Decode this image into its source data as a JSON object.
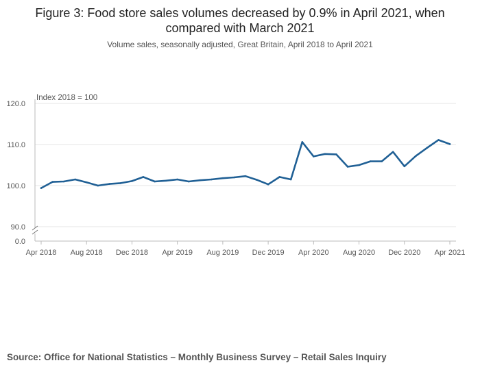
{
  "title_line1": "Figure 3: Food store sales volumes decreased by 0.9% in April 2021, when",
  "title_line2": "compared with March 2021",
  "subtitle": "Volume sales, seasonally adjusted, Great Britain, April 2018 to April 2021",
  "source": "Source: Office for National Statistics – Monthly Business Survey – Retail Sales Inquiry",
  "colors": {
    "line": "#206095",
    "grid": "#e5e5e5",
    "axis": "#bbbbbb",
    "text": "#555555"
  },
  "chart_data": {
    "type": "line",
    "ylabel": "Index 2018 = 100",
    "ylim": [
      0,
      120
    ],
    "y_axis_break": [
      0,
      90
    ],
    "y_ticks": [
      "0.0",
      "90.0",
      "100.0",
      "110.0",
      "120.0"
    ],
    "x_tick_labels": [
      "Apr 2018",
      "Aug 2018",
      "Dec 2018",
      "Apr 2019",
      "Aug 2019",
      "Dec 2019",
      "Apr 2020",
      "Aug 2020",
      "Dec 2020",
      "Apr 2021"
    ],
    "grid": true,
    "series": [
      {
        "x": [
          "Apr 2018",
          "May 2018",
          "Jun 2018",
          "Jul 2018",
          "Aug 2018",
          "Sep 2018",
          "Oct 2018",
          "Nov 2018",
          "Dec 2018",
          "Jan 2019",
          "Feb 2019",
          "Mar 2019",
          "Apr 2019",
          "May 2019",
          "Jun 2019",
          "Jul 2019",
          "Aug 2019",
          "Sep 2019",
          "Oct 2019",
          "Nov 2019",
          "Dec 2019",
          "Jan 2020",
          "Feb 2020",
          "Mar 2020",
          "Apr 2020",
          "May 2020",
          "Jun 2020",
          "Jul 2020",
          "Aug 2020",
          "Sep 2020",
          "Oct 2020",
          "Nov 2020",
          "Dec 2020",
          "Jan 2021",
          "Feb 2021",
          "Mar 2021",
          "Apr 2021"
        ],
        "values": [
          99.4,
          100.9,
          101.0,
          101.5,
          100.8,
          100.0,
          100.4,
          100.6,
          101.1,
          102.1,
          101.0,
          101.2,
          101.5,
          101.0,
          101.3,
          101.5,
          101.8,
          102.0,
          102.3,
          101.4,
          100.3,
          102.1,
          101.5,
          110.6,
          107.1,
          107.7,
          107.6,
          104.6,
          105.0,
          105.9,
          105.9,
          108.2,
          104.7,
          107.2,
          109.2,
          111.1,
          110.1
        ]
      }
    ]
  }
}
